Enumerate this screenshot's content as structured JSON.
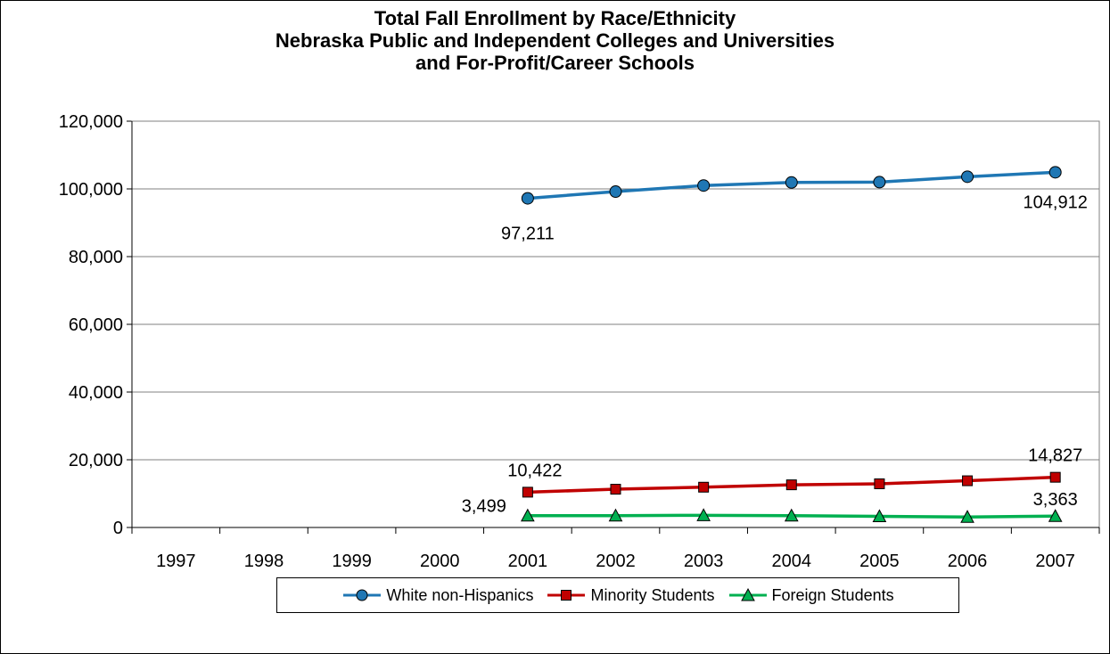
{
  "chart_data": {
    "type": "line",
    "title": [
      "Total Fall Enrollment by Race/Ethnicity",
      "Nebraska Public and Independent Colleges and Universities",
      "and For-Profit/Career Schools"
    ],
    "categories": [
      "1997",
      "1998",
      "1999",
      "2000",
      "2001",
      "2002",
      "2003",
      "2004",
      "2005",
      "2006",
      "2007"
    ],
    "ylim": [
      0,
      120000
    ],
    "yticks": [
      "0",
      "20,000",
      "40,000",
      "60,000",
      "80,000",
      "100,000",
      "120,000"
    ],
    "grid": true,
    "legend_position": "bottom",
    "series": [
      {
        "name": "White non-Hispanics",
        "color": "#1f77b4",
        "marker": "circle",
        "values": [
          null,
          null,
          null,
          null,
          97211,
          99200,
          101000,
          101900,
          102000,
          103600,
          104912
        ],
        "labels": [
          {
            "index": 4,
            "text": "97,211"
          },
          {
            "index": 10,
            "text": "104,912"
          }
        ]
      },
      {
        "name": "Minority Students",
        "color": "#c00000",
        "marker": "square",
        "values": [
          null,
          null,
          null,
          null,
          10422,
          11300,
          11900,
          12600,
          12900,
          13800,
          14827
        ],
        "labels": [
          {
            "index": 4,
            "text": "10,422"
          },
          {
            "index": 10,
            "text": "14,827"
          }
        ]
      },
      {
        "name": "Foreign Students",
        "color": "#00b050",
        "marker": "triangle",
        "values": [
          null,
          null,
          null,
          null,
          3499,
          3500,
          3600,
          3500,
          3300,
          3100,
          3363
        ],
        "labels": [
          {
            "index": 4,
            "text": "3,499"
          },
          {
            "index": 10,
            "text": "3,363"
          }
        ]
      }
    ]
  }
}
